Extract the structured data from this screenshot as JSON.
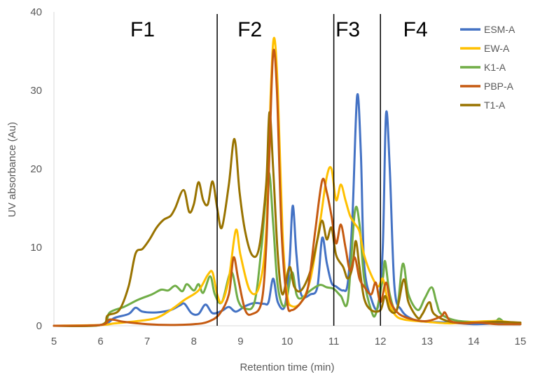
{
  "chart_data": {
    "type": "line",
    "xlabel": "Retention  time (min)",
    "ylabel": "UV absorbance (Au)",
    "xlim": [
      5,
      15
    ],
    "ylim": [
      0,
      40
    ],
    "x_ticks": [
      "5",
      "6",
      "7",
      "8",
      "9",
      "10",
      "11",
      "12",
      "13",
      "14",
      "15"
    ],
    "y_ticks": [
      "0",
      "10",
      "20",
      "30",
      "40"
    ],
    "grid": false,
    "legend_position": "right",
    "fraction_boundaries": [
      8.5,
      11.0,
      12.0
    ],
    "fractions": [
      {
        "label": "F1",
        "x": 6.9
      },
      {
        "label": "F2",
        "x": 9.2
      },
      {
        "label": "F3",
        "x": 11.3
      },
      {
        "label": "F4",
        "x": 12.75
      }
    ],
    "series": [
      {
        "name": "ESM-A",
        "color": "#4472C4",
        "points": [
          [
            5,
            0
          ],
          [
            6,
            0.1
          ],
          [
            6.3,
            1
          ],
          [
            6.6,
            1.5
          ],
          [
            6.75,
            2.3
          ],
          [
            6.9,
            1.8
          ],
          [
            7.2,
            1.7
          ],
          [
            7.5,
            2
          ],
          [
            7.7,
            2.6
          ],
          [
            7.8,
            2.8
          ],
          [
            7.95,
            1.6
          ],
          [
            8.1,
            1.5
          ],
          [
            8.25,
            2.7
          ],
          [
            8.4,
            1.6
          ],
          [
            8.6,
            1.9
          ],
          [
            8.75,
            2.4
          ],
          [
            8.9,
            1.8
          ],
          [
            9.1,
            2.5
          ],
          [
            9.3,
            2.9
          ],
          [
            9.5,
            2.8
          ],
          [
            9.6,
            3
          ],
          [
            9.7,
            6
          ],
          [
            9.8,
            3
          ],
          [
            9.95,
            2.5
          ],
          [
            10.05,
            8
          ],
          [
            10.12,
            15.3
          ],
          [
            10.2,
            9
          ],
          [
            10.3,
            4
          ],
          [
            10.5,
            4
          ],
          [
            10.65,
            5
          ],
          [
            10.75,
            11.2
          ],
          [
            10.85,
            8
          ],
          [
            10.95,
            5.5
          ],
          [
            11.05,
            5
          ],
          [
            11.2,
            4.5
          ],
          [
            11.3,
            5.5
          ],
          [
            11.4,
            14
          ],
          [
            11.5,
            29.3
          ],
          [
            11.58,
            22
          ],
          [
            11.65,
            8
          ],
          [
            11.8,
            3.5
          ],
          [
            11.95,
            2.5
          ],
          [
            12.05,
            10
          ],
          [
            12.12,
            27
          ],
          [
            12.2,
            20
          ],
          [
            12.3,
            5
          ],
          [
            12.45,
            2
          ],
          [
            12.7,
            0.8
          ],
          [
            13,
            0.5
          ],
          [
            13.5,
            0.4
          ],
          [
            14,
            0.2
          ],
          [
            14.5,
            0.3
          ],
          [
            15,
            0.2
          ]
        ]
      },
      {
        "name": "EW-A",
        "color": "#FFC000",
        "points": [
          [
            5,
            0
          ],
          [
            6,
            0.1
          ],
          [
            6.3,
            0.3
          ],
          [
            6.8,
            0.6
          ],
          [
            7.2,
            1
          ],
          [
            7.5,
            2
          ],
          [
            7.8,
            3.3
          ],
          [
            8.1,
            4.5
          ],
          [
            8.3,
            6.5
          ],
          [
            8.4,
            6.8
          ],
          [
            8.5,
            4
          ],
          [
            8.6,
            3
          ],
          [
            8.75,
            6
          ],
          [
            8.9,
            12.2
          ],
          [
            9,
            9
          ],
          [
            9.2,
            4.5
          ],
          [
            9.4,
            5
          ],
          [
            9.55,
            12
          ],
          [
            9.65,
            30
          ],
          [
            9.72,
            36.7
          ],
          [
            9.8,
            30
          ],
          [
            9.9,
            12
          ],
          [
            10,
            4
          ],
          [
            10.1,
            2.5
          ],
          [
            10.3,
            3
          ],
          [
            10.5,
            6
          ],
          [
            10.7,
            13
          ],
          [
            10.85,
            19
          ],
          [
            10.95,
            20
          ],
          [
            11.05,
            16
          ],
          [
            11.15,
            18
          ],
          [
            11.25,
            16
          ],
          [
            11.35,
            14
          ],
          [
            11.45,
            13
          ],
          [
            11.55,
            12
          ],
          [
            11.65,
            9
          ],
          [
            11.8,
            6.5
          ],
          [
            11.95,
            5
          ],
          [
            12.05,
            6
          ],
          [
            12.15,
            3.5
          ],
          [
            12.3,
            1.5
          ],
          [
            12.5,
            0.8
          ],
          [
            13,
            0.5
          ],
          [
            13.5,
            0.3
          ],
          [
            14,
            0.5
          ],
          [
            14.5,
            0.6
          ],
          [
            15,
            0.3
          ]
        ]
      },
      {
        "name": "K1-A",
        "color": "#70AD47",
        "points": [
          [
            5,
            0
          ],
          [
            6,
            0.1
          ],
          [
            6.2,
            1.7
          ],
          [
            6.5,
            2.4
          ],
          [
            6.8,
            3.3
          ],
          [
            7.1,
            4
          ],
          [
            7.3,
            4.6
          ],
          [
            7.45,
            4.5
          ],
          [
            7.6,
            5.1
          ],
          [
            7.75,
            4.4
          ],
          [
            7.85,
            5.3
          ],
          [
            8,
            4.5
          ],
          [
            8.1,
            5.3
          ],
          [
            8.2,
            4.2
          ],
          [
            8.35,
            6.3
          ],
          [
            8.45,
            4
          ],
          [
            8.6,
            3
          ],
          [
            8.8,
            6.9
          ],
          [
            8.95,
            3.2
          ],
          [
            9.1,
            2.2
          ],
          [
            9.3,
            3
          ],
          [
            9.45,
            10
          ],
          [
            9.6,
            19.5
          ],
          [
            9.7,
            13
          ],
          [
            9.8,
            5
          ],
          [
            9.95,
            2.5
          ],
          [
            10.1,
            6.8
          ],
          [
            10.2,
            4
          ],
          [
            10.3,
            3.5
          ],
          [
            10.5,
            4.5
          ],
          [
            10.7,
            5.2
          ],
          [
            10.85,
            4.9
          ],
          [
            11,
            4.7
          ],
          [
            11.15,
            3.8
          ],
          [
            11.3,
            3.2
          ],
          [
            11.45,
            14.5
          ],
          [
            11.55,
            13
          ],
          [
            11.65,
            6
          ],
          [
            11.8,
            2
          ],
          [
            11.9,
            1.5
          ],
          [
            12.05,
            6
          ],
          [
            12.1,
            8.2
          ],
          [
            12.2,
            4
          ],
          [
            12.35,
            2
          ],
          [
            12.48,
            7.9
          ],
          [
            12.6,
            4
          ],
          [
            12.8,
            2
          ],
          [
            12.95,
            3.5
          ],
          [
            13.1,
            4.9
          ],
          [
            13.2,
            3
          ],
          [
            13.3,
            1.5
          ],
          [
            13.6,
            0.7
          ],
          [
            14,
            0.5
          ],
          [
            14.45,
            0.6
          ],
          [
            14.55,
            0.9
          ],
          [
            14.7,
            0.3
          ],
          [
            15,
            0.2
          ]
        ]
      },
      {
        "name": "PBP-A",
        "color": "#C55A11",
        "points": [
          [
            5,
            0
          ],
          [
            6,
            0.1
          ],
          [
            6.2,
            0.8
          ],
          [
            6.5,
            0.5
          ],
          [
            7,
            0.2
          ],
          [
            7.5,
            0.1
          ],
          [
            8,
            0.2
          ],
          [
            8.3,
            0.5
          ],
          [
            8.55,
            1.5
          ],
          [
            8.75,
            4
          ],
          [
            8.85,
            8.7
          ],
          [
            8.95,
            6
          ],
          [
            9.1,
            2
          ],
          [
            9.25,
            1.5
          ],
          [
            9.45,
            3
          ],
          [
            9.55,
            10
          ],
          [
            9.62,
            22
          ],
          [
            9.7,
            34.8
          ],
          [
            9.78,
            30
          ],
          [
            9.88,
            12
          ],
          [
            10,
            3
          ],
          [
            10.1,
            2
          ],
          [
            10.3,
            3
          ],
          [
            10.45,
            5
          ],
          [
            10.6,
            12
          ],
          [
            10.75,
            18.5
          ],
          [
            10.85,
            17
          ],
          [
            10.95,
            14
          ],
          [
            11.05,
            10.5
          ],
          [
            11.15,
            12.9
          ],
          [
            11.25,
            10
          ],
          [
            11.35,
            7
          ],
          [
            11.45,
            8.7
          ],
          [
            11.55,
            6
          ],
          [
            11.65,
            5
          ],
          [
            11.8,
            4
          ],
          [
            11.9,
            5.5
          ],
          [
            12,
            3
          ],
          [
            12.12,
            5.5
          ],
          [
            12.22,
            3
          ],
          [
            12.4,
            1.5
          ],
          [
            12.7,
            0.8
          ],
          [
            13,
            0.6
          ],
          [
            13.3,
            1.2
          ],
          [
            13.38,
            1.7
          ],
          [
            13.5,
            0.6
          ],
          [
            13.8,
            0.3
          ],
          [
            14.1,
            0.4
          ],
          [
            14.5,
            0.2
          ],
          [
            15,
            0.2
          ]
        ]
      },
      {
        "name": "T1-A",
        "color": "#997300",
        "points": [
          [
            5,
            0
          ],
          [
            6,
            0.1
          ],
          [
            6.15,
            1.3
          ],
          [
            6.4,
            2
          ],
          [
            6.6,
            5
          ],
          [
            6.75,
            9.2
          ],
          [
            6.9,
            9.8
          ],
          [
            7.05,
            11
          ],
          [
            7.2,
            12.5
          ],
          [
            7.35,
            13.5
          ],
          [
            7.5,
            14
          ],
          [
            7.6,
            15
          ],
          [
            7.78,
            17.3
          ],
          [
            7.9,
            14.5
          ],
          [
            8.0,
            15.5
          ],
          [
            8.1,
            18.3
          ],
          [
            8.2,
            16
          ],
          [
            8.3,
            15.5
          ],
          [
            8.4,
            18.4
          ],
          [
            8.5,
            15
          ],
          [
            8.6,
            12.5
          ],
          [
            8.75,
            18
          ],
          [
            8.87,
            23.8
          ],
          [
            8.98,
            17
          ],
          [
            9.1,
            12
          ],
          [
            9.25,
            9
          ],
          [
            9.4,
            10
          ],
          [
            9.55,
            18
          ],
          [
            9.62,
            27.2
          ],
          [
            9.7,
            20
          ],
          [
            9.8,
            9
          ],
          [
            9.9,
            4
          ],
          [
            10.05,
            7.5
          ],
          [
            10.15,
            5
          ],
          [
            10.3,
            4.5
          ],
          [
            10.5,
            7
          ],
          [
            10.65,
            11
          ],
          [
            10.75,
            13.4
          ],
          [
            10.85,
            11
          ],
          [
            10.95,
            12.5
          ],
          [
            11.05,
            9
          ],
          [
            11.2,
            7.5
          ],
          [
            11.3,
            6
          ],
          [
            11.4,
            7.5
          ],
          [
            11.47,
            10.8
          ],
          [
            11.55,
            7.5
          ],
          [
            11.65,
            3.5
          ],
          [
            11.8,
            2
          ],
          [
            12,
            2
          ],
          [
            12.1,
            3.8
          ],
          [
            12.2,
            2
          ],
          [
            12.35,
            2
          ],
          [
            12.5,
            5.9
          ],
          [
            12.6,
            3
          ],
          [
            12.8,
            1
          ],
          [
            12.9,
            1.5
          ],
          [
            13.05,
            3
          ],
          [
            13.15,
            1.5
          ],
          [
            13.5,
            0.5
          ],
          [
            14,
            0.4
          ],
          [
            14.5,
            0.5
          ],
          [
            15,
            0.4
          ]
        ]
      }
    ]
  }
}
